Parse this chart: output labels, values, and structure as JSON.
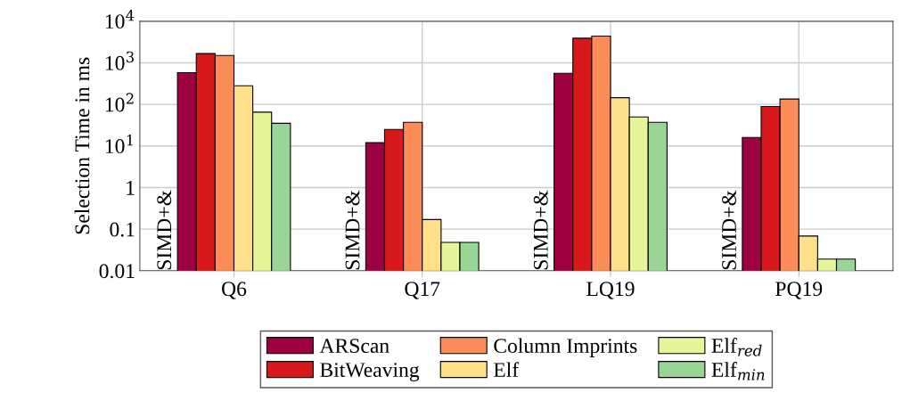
{
  "chart_data": {
    "type": "bar",
    "ylabel": "Selection Time in ms",
    "categories": [
      "Q6",
      "Q17",
      "LQ19",
      "PQ19"
    ],
    "series": [
      {
        "name": "ARScan",
        "color": "#9e0142",
        "values": [
          580,
          12,
          560,
          16
        ]
      },
      {
        "name": "BitWeaving",
        "color": "#d7191c",
        "values": [
          1670,
          25,
          3900,
          89
        ]
      },
      {
        "name": "Column Imprints",
        "color": "#fc8d59",
        "values": [
          1500,
          37,
          4400,
          135
        ]
      },
      {
        "name": "Elf",
        "color": "#fee08b",
        "values": [
          280,
          0.17,
          145,
          0.068
        ]
      },
      {
        "name": "Elf$_{red}$",
        "color": "#e6f598",
        "values": [
          65,
          0.048,
          50,
          0.019
        ]
      },
      {
        "name": "Elf$_{min}$",
        "color": "#99d594",
        "values": [
          35,
          0.048,
          37,
          0.019
        ]
      }
    ],
    "log": "y",
    "ylim": [
      0.01,
      10000
    ],
    "yticks": [
      0.01,
      0.1,
      1,
      {
        "value": 10,
        "label": "10$^{1}$"
      },
      {
        "value": 100,
        "label": "10$^{2}$"
      },
      {
        "value": 1000,
        "label": "10$^{3}$"
      },
      {
        "value": 10000,
        "label": "10$^{4}$"
      }
    ],
    "grid": true,
    "legend": "bottom",
    "annotations": [
      {
        "text": "SIMD+&",
        "x": "Q6",
        "y": 0.01
      },
      {
        "text": "SIMD+&",
        "x": "Q17",
        "y": 0.01
      },
      {
        "text": "SIMD+&",
        "x": "LQ19",
        "y": 0.01
      },
      {
        "text": "SIMD+&",
        "x": "PQ19",
        "y": 0.01
      }
    ]
  }
}
